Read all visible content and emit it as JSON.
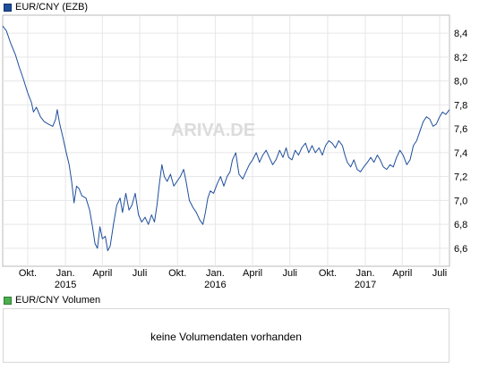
{
  "legend": {
    "price_label": "EUR/CNY (EZB)",
    "price_color": "#1f4e9c",
    "volume_label": "EUR/CNY Volumen",
    "volume_color": "#4caf50"
  },
  "watermark": "ARIVA.DE",
  "volume_panel": {
    "message": "keine Volumendaten vorhanden"
  },
  "chart_data": {
    "type": "line",
    "title": "",
    "xlabel": "",
    "ylabel": "",
    "ylim": [
      6.45,
      8.55
    ],
    "xlim": [
      "2014-08-01",
      "2017-07-25"
    ],
    "grid": true,
    "legend_position": "top-left",
    "y_ticks": [
      "8,4",
      "8,2",
      "8,0",
      "7,8",
      "7,6",
      "7,4",
      "7,2",
      "7,0",
      "6,8",
      "6,6"
    ],
    "y_tick_values": [
      8.4,
      8.2,
      8.0,
      7.8,
      7.6,
      7.4,
      7.2,
      7.0,
      6.8,
      6.6
    ],
    "x_ticks": [
      {
        "label": "Okt.",
        "year": "",
        "date": "2014-10-01"
      },
      {
        "label": "Jan.",
        "year": "2015",
        "date": "2015-01-01"
      },
      {
        "label": "April",
        "year": "",
        "date": "2015-04-01"
      },
      {
        "label": "Juli",
        "year": "",
        "date": "2015-07-01"
      },
      {
        "label": "Okt.",
        "year": "",
        "date": "2015-10-01"
      },
      {
        "label": "Jan.",
        "year": "2016",
        "date": "2016-01-01"
      },
      {
        "label": "April",
        "year": "",
        "date": "2016-04-01"
      },
      {
        "label": "Juli",
        "year": "",
        "date": "2016-07-01"
      },
      {
        "label": "Okt.",
        "year": "",
        "date": "2016-10-01"
      },
      {
        "label": "Jan.",
        "year": "2017",
        "date": "2017-01-01"
      },
      {
        "label": "April",
        "year": "",
        "date": "2017-04-01"
      },
      {
        "label": "Juli",
        "year": "",
        "date": "2017-07-01"
      }
    ],
    "series": [
      {
        "color": "#1f4e9c",
        "points": [
          [
            "2014-08-01",
            8.46
          ],
          [
            "2014-08-10",
            8.42
          ],
          [
            "2014-08-20",
            8.32
          ],
          [
            "2014-09-01",
            8.22
          ],
          [
            "2014-09-10",
            8.12
          ],
          [
            "2014-09-20",
            8.02
          ],
          [
            "2014-10-01",
            7.9
          ],
          [
            "2014-10-10",
            7.82
          ],
          [
            "2014-10-15",
            7.74
          ],
          [
            "2014-10-22",
            7.78
          ],
          [
            "2014-11-01",
            7.7
          ],
          [
            "2014-11-10",
            7.66
          ],
          [
            "2014-11-20",
            7.64
          ],
          [
            "2014-12-01",
            7.62
          ],
          [
            "2014-12-08",
            7.68
          ],
          [
            "2014-12-12",
            7.76
          ],
          [
            "2014-12-18",
            7.64
          ],
          [
            "2014-12-25",
            7.54
          ],
          [
            "2015-01-03",
            7.4
          ],
          [
            "2015-01-10",
            7.3
          ],
          [
            "2015-01-16",
            7.16
          ],
          [
            "2015-01-22",
            6.98
          ],
          [
            "2015-01-28",
            7.12
          ],
          [
            "2015-02-03",
            7.1
          ],
          [
            "2015-02-10",
            7.04
          ],
          [
            "2015-02-20",
            7.02
          ],
          [
            "2015-03-01",
            6.92
          ],
          [
            "2015-03-08",
            6.78
          ],
          [
            "2015-03-14",
            6.64
          ],
          [
            "2015-03-20",
            6.6
          ],
          [
            "2015-03-26",
            6.78
          ],
          [
            "2015-04-01",
            6.68
          ],
          [
            "2015-04-08",
            6.7
          ],
          [
            "2015-04-14",
            6.58
          ],
          [
            "2015-04-20",
            6.62
          ],
          [
            "2015-04-28",
            6.8
          ],
          [
            "2015-05-06",
            6.96
          ],
          [
            "2015-05-14",
            7.02
          ],
          [
            "2015-05-20",
            6.9
          ],
          [
            "2015-05-28",
            7.06
          ],
          [
            "2015-06-05",
            6.92
          ],
          [
            "2015-06-12",
            6.96
          ],
          [
            "2015-06-20",
            7.06
          ],
          [
            "2015-06-28",
            6.88
          ],
          [
            "2015-07-06",
            6.82
          ],
          [
            "2015-07-14",
            6.86
          ],
          [
            "2015-07-22",
            6.8
          ],
          [
            "2015-07-30",
            6.88
          ],
          [
            "2015-08-06",
            6.82
          ],
          [
            "2015-08-12",
            6.96
          ],
          [
            "2015-08-18",
            7.14
          ],
          [
            "2015-08-24",
            7.3
          ],
          [
            "2015-08-30",
            7.2
          ],
          [
            "2015-09-06",
            7.16
          ],
          [
            "2015-09-14",
            7.22
          ],
          [
            "2015-09-22",
            7.12
          ],
          [
            "2015-09-30",
            7.16
          ],
          [
            "2015-10-08",
            7.2
          ],
          [
            "2015-10-16",
            7.26
          ],
          [
            "2015-10-22",
            7.16
          ],
          [
            "2015-10-30",
            7.0
          ],
          [
            "2015-11-08",
            6.94
          ],
          [
            "2015-11-16",
            6.9
          ],
          [
            "2015-11-24",
            6.84
          ],
          [
            "2015-12-02",
            6.8
          ],
          [
            "2015-12-08",
            6.9
          ],
          [
            "2015-12-14",
            7.02
          ],
          [
            "2015-12-20",
            7.08
          ],
          [
            "2015-12-28",
            7.06
          ],
          [
            "2016-01-06",
            7.14
          ],
          [
            "2016-01-14",
            7.2
          ],
          [
            "2016-01-22",
            7.12
          ],
          [
            "2016-01-30",
            7.2
          ],
          [
            "2016-02-06",
            7.24
          ],
          [
            "2016-02-12",
            7.34
          ],
          [
            "2016-02-20",
            7.4
          ],
          [
            "2016-02-28",
            7.22
          ],
          [
            "2016-03-08",
            7.18
          ],
          [
            "2016-03-16",
            7.24
          ],
          [
            "2016-03-24",
            7.3
          ],
          [
            "2016-04-01",
            7.34
          ],
          [
            "2016-04-10",
            7.4
          ],
          [
            "2016-04-18",
            7.32
          ],
          [
            "2016-04-26",
            7.38
          ],
          [
            "2016-05-04",
            7.42
          ],
          [
            "2016-05-12",
            7.36
          ],
          [
            "2016-05-20",
            7.3
          ],
          [
            "2016-05-28",
            7.34
          ],
          [
            "2016-06-06",
            7.42
          ],
          [
            "2016-06-14",
            7.36
          ],
          [
            "2016-06-22",
            7.44
          ],
          [
            "2016-06-28",
            7.36
          ],
          [
            "2016-07-06",
            7.34
          ],
          [
            "2016-07-14",
            7.42
          ],
          [
            "2016-07-22",
            7.38
          ],
          [
            "2016-07-30",
            7.44
          ],
          [
            "2016-08-08",
            7.48
          ],
          [
            "2016-08-16",
            7.4
          ],
          [
            "2016-08-24",
            7.46
          ],
          [
            "2016-09-01",
            7.4
          ],
          [
            "2016-09-10",
            7.44
          ],
          [
            "2016-09-18",
            7.38
          ],
          [
            "2016-09-26",
            7.46
          ],
          [
            "2016-10-04",
            7.5
          ],
          [
            "2016-10-12",
            7.48
          ],
          [
            "2016-10-20",
            7.44
          ],
          [
            "2016-10-28",
            7.5
          ],
          [
            "2016-11-06",
            7.46
          ],
          [
            "2016-11-12",
            7.38
          ],
          [
            "2016-11-18",
            7.32
          ],
          [
            "2016-11-26",
            7.28
          ],
          [
            "2016-12-04",
            7.34
          ],
          [
            "2016-12-12",
            7.26
          ],
          [
            "2016-12-20",
            7.24
          ],
          [
            "2016-12-28",
            7.28
          ],
          [
            "2017-01-06",
            7.32
          ],
          [
            "2017-01-14",
            7.36
          ],
          [
            "2017-01-22",
            7.32
          ],
          [
            "2017-01-30",
            7.38
          ],
          [
            "2017-02-06",
            7.34
          ],
          [
            "2017-02-14",
            7.28
          ],
          [
            "2017-02-22",
            7.26
          ],
          [
            "2017-03-02",
            7.3
          ],
          [
            "2017-03-10",
            7.28
          ],
          [
            "2017-03-18",
            7.36
          ],
          [
            "2017-03-26",
            7.42
          ],
          [
            "2017-04-03",
            7.38
          ],
          [
            "2017-04-12",
            7.3
          ],
          [
            "2017-04-20",
            7.34
          ],
          [
            "2017-04-28",
            7.46
          ],
          [
            "2017-05-06",
            7.5
          ],
          [
            "2017-05-14",
            7.58
          ],
          [
            "2017-05-22",
            7.66
          ],
          [
            "2017-05-30",
            7.7
          ],
          [
            "2017-06-07",
            7.68
          ],
          [
            "2017-06-15",
            7.62
          ],
          [
            "2017-06-23",
            7.64
          ],
          [
            "2017-07-01",
            7.7
          ],
          [
            "2017-07-08",
            7.74
          ],
          [
            "2017-07-16",
            7.72
          ],
          [
            "2017-07-25",
            7.76
          ]
        ]
      }
    ]
  }
}
